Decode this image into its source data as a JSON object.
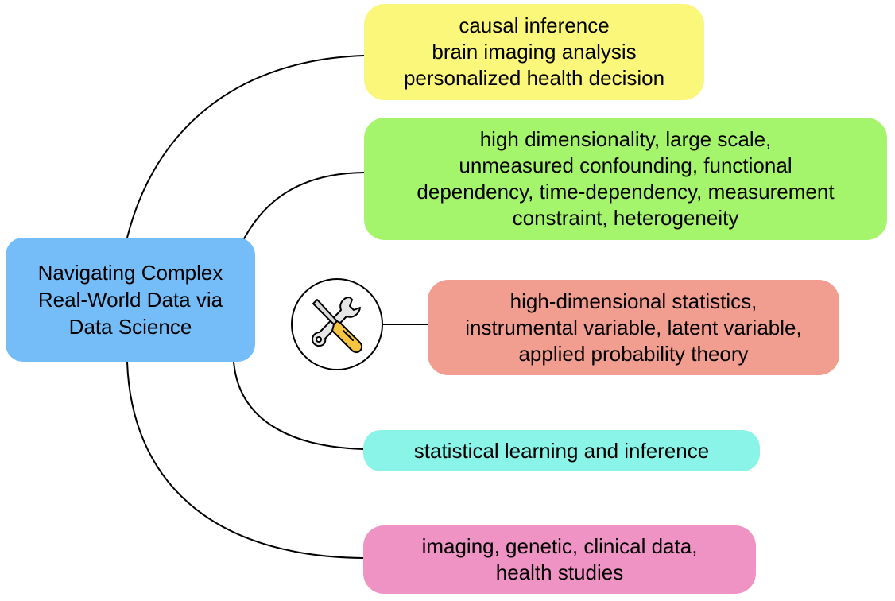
{
  "center": {
    "lines": [
      "Navigating Complex",
      "Real-World Data via",
      "Data Science"
    ]
  },
  "nodes": [
    {
      "lines": [
        "causal inference",
        "brain imaging analysis",
        "personalized health decision"
      ],
      "color": "#fbf77a"
    },
    {
      "lines": [
        "high dimensionality, large scale,",
        "unmeasured confounding, functional",
        "dependency, time-dependency, measurement",
        "constraint, heterogeneity"
      ],
      "color": "#a4f56b"
    },
    {
      "lines": [
        "high-dimensional statistics,",
        "instrumental variable, latent variable,",
        "applied probability theory"
      ],
      "color": "#f19d8f"
    },
    {
      "lines": [
        "statistical learning and inference"
      ],
      "color": "#89f4e7"
    },
    {
      "lines": [
        "imaging, genetic, clinical data,",
        "health studies"
      ],
      "color": "#ef92c4"
    }
  ],
  "icons": {
    "tools": "wrench-screwdriver-icon"
  }
}
